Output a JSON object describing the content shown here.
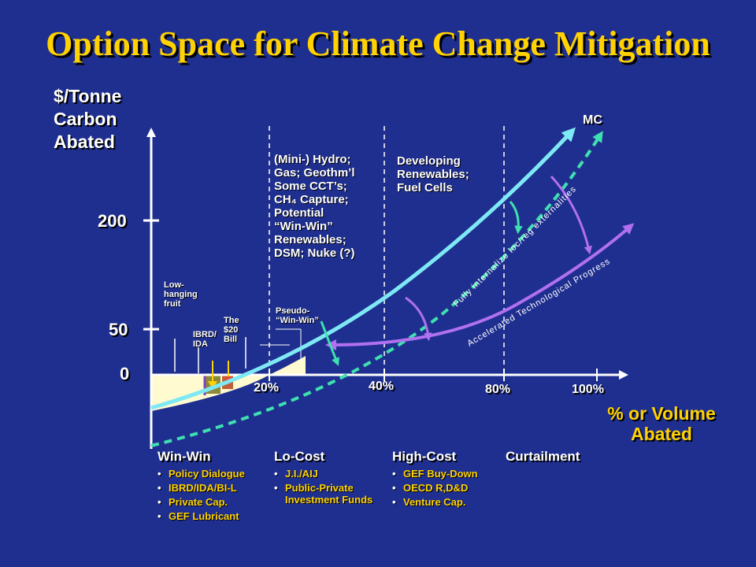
{
  "title": "Option Space for Climate Change Mitigation",
  "y_axis": {
    "label_lines": [
      "$/Tonne",
      "Carbon",
      "Abated"
    ],
    "ticks": [
      "200",
      "50",
      "0"
    ]
  },
  "x_axis": {
    "ticks": [
      "20%",
      "40%",
      "80%",
      "100%"
    ],
    "label_lines": [
      "% or Volume",
      "Abated"
    ]
  },
  "curve_label": "MC",
  "annotations": {
    "low_hanging": [
      "Low-",
      "hanging",
      "fruit"
    ],
    "ibrd_ida": [
      "IBRD/",
      "IDA"
    ],
    "the_20_bill": [
      "The",
      "$20",
      "Bill"
    ],
    "pseudo_win_win": [
      "Pseudo-",
      "“Win-Win”"
    ],
    "mini_hydro": [
      "(Mini-) Hydro;",
      "Gas; Geothm’l",
      "Some CCT’s;",
      "CH₄ Capture;",
      "Potential",
      "“Win-Win”",
      "Renewables;",
      "DSM; Nuke (?)"
    ],
    "developing": [
      "Developing",
      "Renewables;",
      "Fuel Cells"
    ],
    "fully_internalize": "Fully internalize loc/reg externalities",
    "accelerated": "Accelerated Technological Progress"
  },
  "segments": [
    {
      "title": "Win-Win",
      "items": [
        "Policy Dialogue",
        "IBRD/IDA/BI-L",
        "Private Cap.",
        "GEF Lubricant"
      ]
    },
    {
      "title": "Lo-Cost",
      "items": [
        "J.I./AIJ",
        "Public-Private Investment Funds"
      ]
    },
    {
      "title": "High-Cost",
      "items": [
        "GEF Buy-Down",
        "OECD R,D&D",
        "Venture Cap."
      ]
    },
    {
      "title": "Curtailment",
      "items": []
    }
  ],
  "colors": {
    "background": "#1f2f8f",
    "title": "#ffd200",
    "mc_curve": "#7ee8f5",
    "dashed_curve": "#3fe0b0",
    "purple_curve": "#b070f0",
    "win_win_fill": "#fffad0"
  }
}
